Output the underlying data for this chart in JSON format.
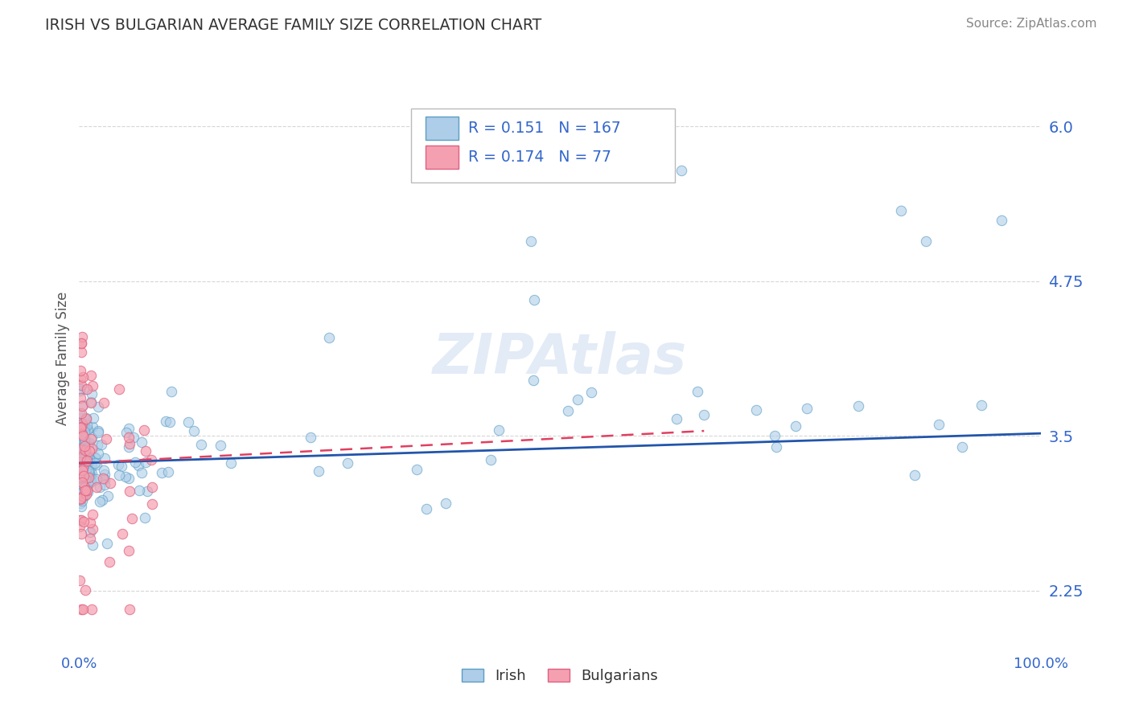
{
  "title": "IRISH VS BULGARIAN AVERAGE FAMILY SIZE CORRELATION CHART",
  "source": "Source: ZipAtlas.com",
  "ylabel": "Average Family Size",
  "xlim": [
    0,
    1
  ],
  "ylim": [
    1.75,
    6.5
  ],
  "yticks": [
    2.25,
    3.5,
    4.75,
    6.0
  ],
  "xticklabels": [
    "0.0%",
    "100.0%"
  ],
  "irish_R": 0.151,
  "irish_N": 167,
  "bulg_R": 0.174,
  "bulg_N": 77,
  "irish_color": "#aecde8",
  "irish_edge": "#5a9dc5",
  "bulg_color": "#f4a0b0",
  "bulg_edge": "#e06080",
  "irish_line_color": "#2255aa",
  "bulg_line_color": "#e04060",
  "axis_color": "#3366cc",
  "grid_color": "#cccccc",
  "background_color": "#ffffff",
  "title_color": "#333333",
  "source_color": "#888888",
  "watermark_color": "#d0dff0",
  "ylabel_color": "#555555"
}
